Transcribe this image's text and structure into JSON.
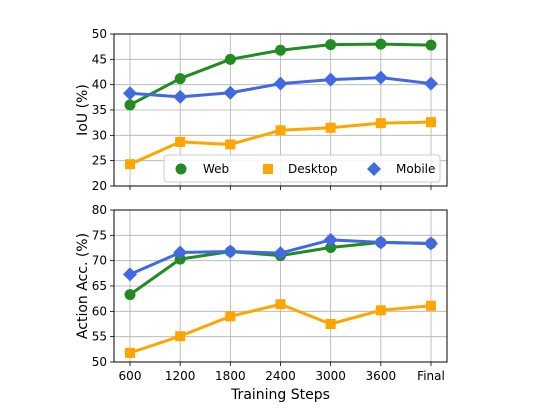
{
  "chart_data": [
    {
      "type": "line",
      "categories": [
        "600",
        "1200",
        "1800",
        "2400",
        "3000",
        "3600",
        "Final"
      ],
      "xlabel": "",
      "ylabel": "IoU (%)",
      "ylim": [
        20,
        50
      ],
      "yticks": [
        20,
        25,
        30,
        35,
        40,
        45,
        50
      ],
      "grid": true,
      "legend_position": "lower-right",
      "series": [
        {
          "name": "Web",
          "color": "#228B22",
          "marker": "circle",
          "values": [
            36.0,
            41.2,
            45.0,
            46.8,
            47.9,
            48.0,
            47.8
          ]
        },
        {
          "name": "Desktop",
          "color": "#FFA500",
          "marker": "square",
          "values": [
            24.3,
            28.7,
            28.2,
            31.0,
            31.5,
            32.4,
            32.6
          ]
        },
        {
          "name": "Mobile",
          "color": "#4169E1",
          "marker": "diamond",
          "values": [
            38.3,
            37.6,
            38.4,
            40.2,
            41.0,
            41.4,
            40.2
          ]
        }
      ]
    },
    {
      "type": "line",
      "categories": [
        "600",
        "1200",
        "1800",
        "2400",
        "3000",
        "3600",
        "Final"
      ],
      "xlabel": "Training Steps",
      "ylabel": "Action Acc. (%)",
      "ylim": [
        50,
        80
      ],
      "yticks": [
        50,
        55,
        60,
        65,
        70,
        75,
        80
      ],
      "grid": true,
      "series": [
        {
          "name": "Web",
          "color": "#228B22",
          "marker": "circle",
          "values": [
            63.3,
            70.3,
            71.8,
            71.0,
            72.6,
            73.6,
            73.4
          ]
        },
        {
          "name": "Desktop",
          "color": "#FFA500",
          "marker": "square",
          "values": [
            51.8,
            55.1,
            59.0,
            61.4,
            57.5,
            60.2,
            61.1
          ]
        },
        {
          "name": "Mobile",
          "color": "#4169E1",
          "marker": "diamond",
          "values": [
            67.3,
            71.6,
            71.8,
            71.5,
            74.1,
            73.6,
            73.4
          ]
        }
      ]
    }
  ]
}
